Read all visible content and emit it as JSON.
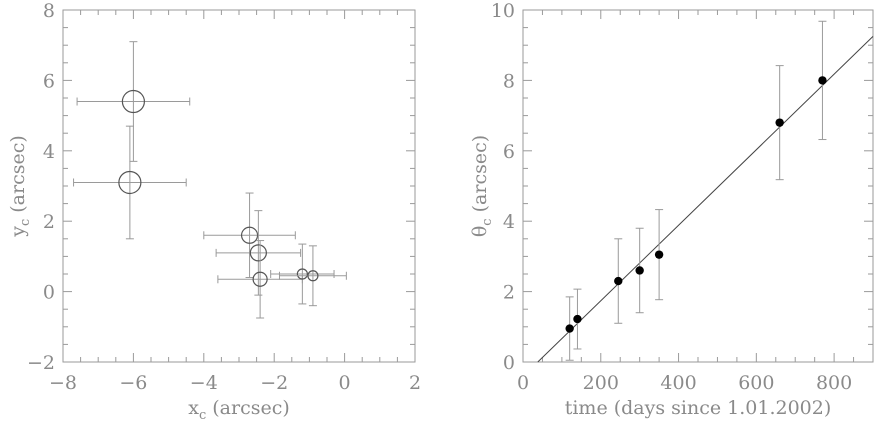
{
  "chart_data": [
    {
      "type": "scatter",
      "xlabel": "x",
      "xlabel_sub": "c",
      "xlabel_unit": " (arcsec)",
      "ylabel": "y",
      "ylabel_sub": "c",
      "ylabel_unit": " (arcsec)",
      "xlim": [
        -8,
        2
      ],
      "ylim": [
        -2,
        8
      ],
      "xticks": [
        -8,
        -6,
        -4,
        -2,
        0,
        2
      ],
      "yticks": [
        -2,
        0,
        2,
        4,
        6,
        8
      ],
      "xtick_labels": [
        "−8",
        "−6",
        "−4",
        "−2",
        "0",
        "2"
      ],
      "ytick_labels": [
        "−2",
        "0",
        "2",
        "4",
        "6",
        "8"
      ],
      "marker": "open-circle",
      "points": [
        {
          "x": -6.0,
          "y": 5.4,
          "xerr": 1.6,
          "yerr": 1.7,
          "size": 11
        },
        {
          "x": -6.1,
          "y": 3.1,
          "xerr": 1.6,
          "yerr": 1.6,
          "size": 11
        },
        {
          "x": -2.7,
          "y": 1.6,
          "xerr": 1.3,
          "yerr": 1.2,
          "size": 8
        },
        {
          "x": -2.45,
          "y": 1.1,
          "xerr": 1.2,
          "yerr": 1.2,
          "size": 8
        },
        {
          "x": -2.4,
          "y": 0.35,
          "xerr": 1.2,
          "yerr": 1.1,
          "size": 7
        },
        {
          "x": -1.2,
          "y": 0.5,
          "xerr": 0.9,
          "yerr": 0.85,
          "size": 5
        },
        {
          "x": -0.9,
          "y": 0.45,
          "xerr": 0.95,
          "yerr": 0.85,
          "size": 5
        }
      ]
    },
    {
      "type": "scatter",
      "xlabel": "time (days since 1.01.2002)",
      "ylabel": "θ",
      "ylabel_sub": "c",
      "ylabel_unit": " (arcsec)",
      "xlim": [
        0,
        900
      ],
      "ylim": [
        0,
        10
      ],
      "xticks": [
        0,
        200,
        400,
        600,
        800
      ],
      "yticks": [
        0,
        2,
        4,
        6,
        8,
        10
      ],
      "xtick_labels": [
        "0",
        "200",
        "400",
        "600",
        "800"
      ],
      "ytick_labels": [
        "0",
        "2",
        "4",
        "6",
        "8",
        "10"
      ],
      "marker": "filled-circle",
      "points": [
        {
          "x": 120,
          "y": 0.95,
          "yerr": 0.9
        },
        {
          "x": 140,
          "y": 1.22,
          "yerr": 0.85
        },
        {
          "x": 245,
          "y": 2.3,
          "yerr": 1.2
        },
        {
          "x": 300,
          "y": 2.6,
          "yerr": 1.2
        },
        {
          "x": 350,
          "y": 3.05,
          "yerr": 1.28
        },
        {
          "x": 660,
          "y": 6.8,
          "yerr": 1.62
        },
        {
          "x": 770,
          "y": 8.0,
          "yerr": 1.68
        }
      ],
      "fit_line": {
        "x": [
          38,
          900
        ],
        "y": [
          0,
          9.25
        ]
      }
    }
  ]
}
